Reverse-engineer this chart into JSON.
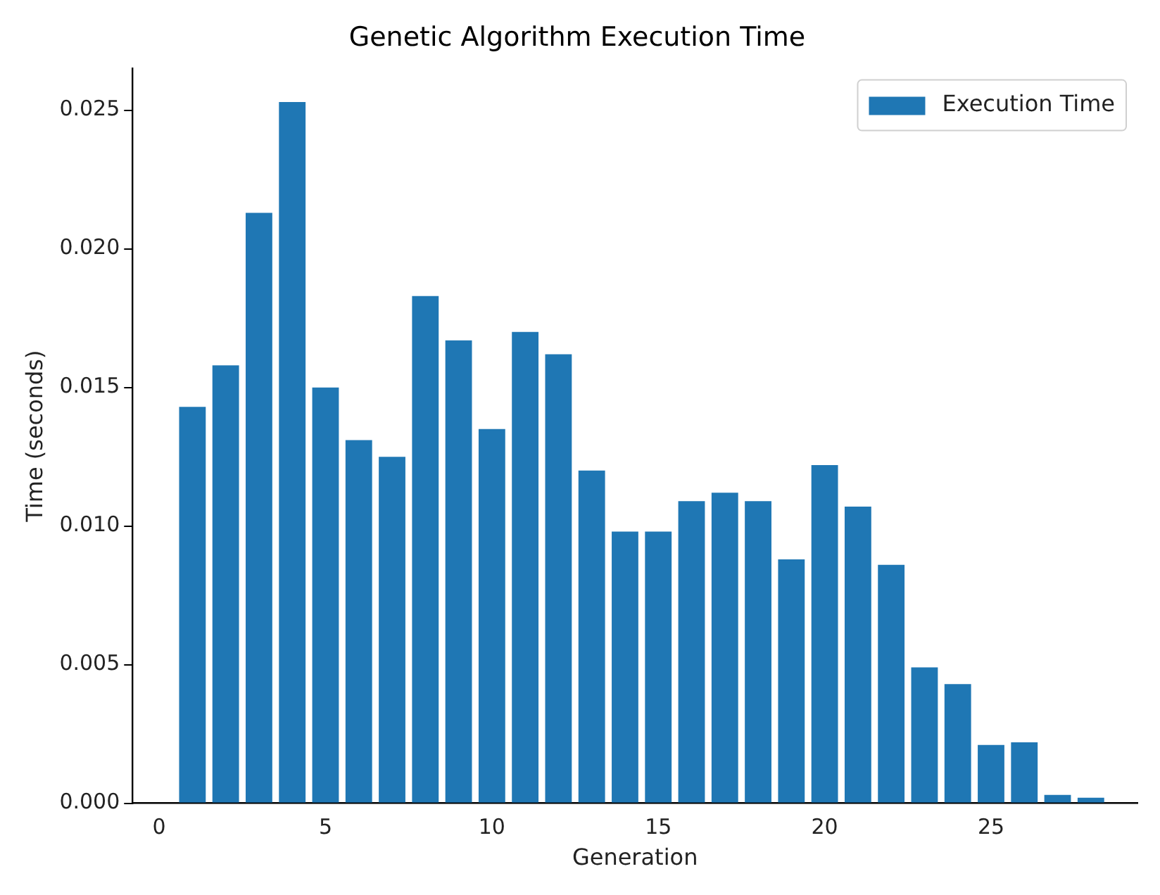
{
  "chart_data": {
    "type": "bar",
    "title": "Genetic Algorithm Execution Time",
    "xlabel": "Generation",
    "ylabel": "Time (seconds)",
    "x": [
      1,
      2,
      3,
      4,
      5,
      6,
      7,
      8,
      9,
      10,
      11,
      12,
      13,
      14,
      15,
      16,
      17,
      18,
      19,
      20,
      21,
      22,
      23,
      24,
      25,
      26,
      27,
      28
    ],
    "series": [
      {
        "name": "Execution Time",
        "color": "#1f77b4",
        "values": [
          0.0143,
          0.0158,
          0.0213,
          0.0253,
          0.015,
          0.0131,
          0.0125,
          0.0183,
          0.0167,
          0.0135,
          0.017,
          0.0162,
          0.012,
          0.0098,
          0.0098,
          0.0109,
          0.0112,
          0.0109,
          0.0088,
          0.0122,
          0.0107,
          0.0086,
          0.0049,
          0.0043,
          0.0021,
          0.0022,
          0.0003,
          0.0002
        ]
      }
    ],
    "xlim": [
      -0.8,
      29.4
    ],
    "xticks": [
      0,
      5,
      10,
      15,
      20,
      25
    ],
    "ylim": [
      0,
      0.0265
    ],
    "yticks": [
      {
        "value": 0,
        "label": "0.000"
      },
      {
        "value": 0.005,
        "label": "0.005"
      },
      {
        "value": 0.01,
        "label": "0.010"
      },
      {
        "value": 0.015,
        "label": "0.015"
      },
      {
        "value": 0.02,
        "label": "0.020"
      },
      {
        "value": 0.025,
        "label": "0.025"
      }
    ],
    "legend": "top right",
    "grid": false
  }
}
